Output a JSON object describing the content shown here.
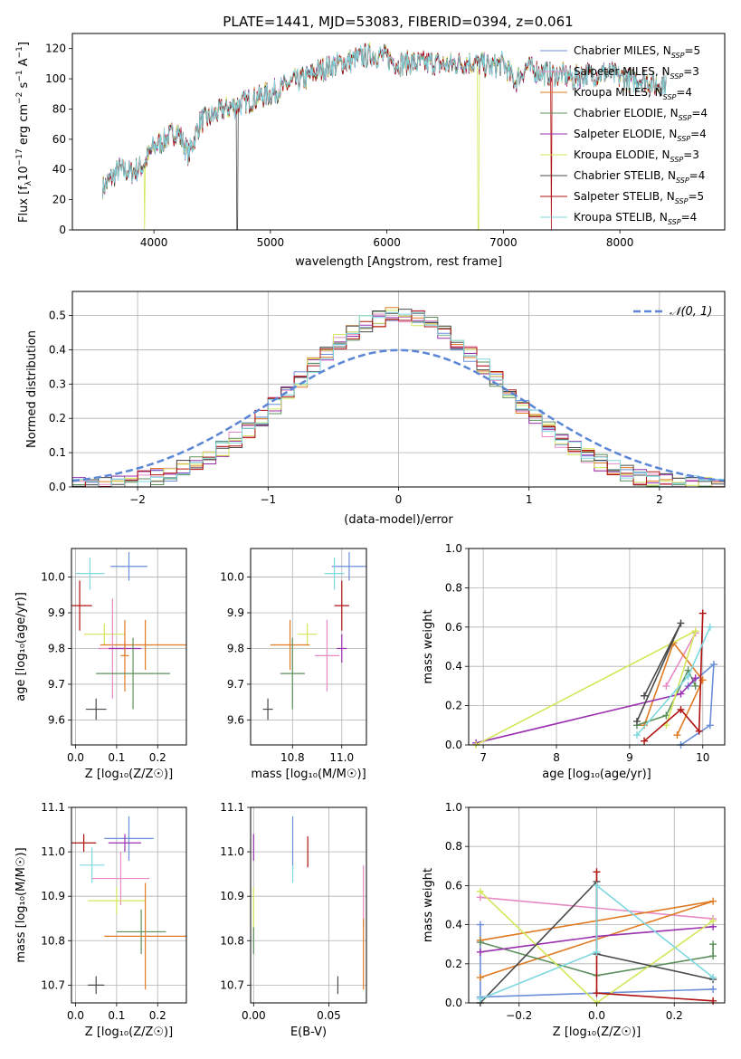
{
  "title": "PLATE=1441, MJD=53083, FIBERID=0394, z=0.061",
  "colors": {
    "chabrier_miles": "#6a8fd8",
    "salpeter_miles": "#e78ac3",
    "kroupa_miles": "#e07b24",
    "chabrier_elodie": "#5c8f5c",
    "salpeter_elodie": "#9b30b0",
    "kroupa_elodie": "#d4e65a",
    "chabrier_stelib": "#4a4a4a",
    "salpeter_stelib": "#b01010",
    "kroupa_stelib": "#7fd8e0",
    "normal_curve": "#5b86d6"
  },
  "panel_spectrum": {
    "xlabel": "wavelength [Angstrom, rest frame]",
    "ylabel_parts": {
      "main": "Flux [f",
      "sub": "λ",
      "mid": "10",
      "exp1": "−17",
      "mid2": " erg cm",
      "exp2": "−2",
      "mid3": " s",
      "exp3": "−1",
      "mid4": " A",
      "exp4": "−1",
      "end": "]"
    },
    "xticks": [
      "4000",
      "5000",
      "6000",
      "7000",
      "8000"
    ],
    "yticks": [
      "0",
      "20",
      "40",
      "60",
      "80",
      "100",
      "120"
    ],
    "legend": [
      {
        "name": "Chabrier MILES",
        "n": "5"
      },
      {
        "name": "Salpeter MILES",
        "n": "3"
      },
      {
        "name": "Kroupa MILES",
        "n": "4"
      },
      {
        "name": "Chabrier ELODIE",
        "n": "4"
      },
      {
        "name": "Salpeter ELODIE",
        "n": "4"
      },
      {
        "name": "Kroupa ELODIE",
        "n": "3"
      },
      {
        "name": "Chabrier STELIB",
        "n": "4"
      },
      {
        "name": "Salpeter STELIB",
        "n": "5"
      },
      {
        "name": "Kroupa STELIB",
        "n": "4"
      }
    ],
    "legend_n_prefix": "N",
    "legend_n_sub": "SSP",
    "legend_position": "upper-right"
  },
  "panel_residuals": {
    "xlabel": "(data-model)/error",
    "ylabel": "Normed distribution",
    "xticks": [
      "−2",
      "−1",
      "0",
      "1",
      "2"
    ],
    "yticks": [
      "0.0",
      "0.1",
      "0.2",
      "0.3",
      "0.4",
      "0.5"
    ],
    "legend_label": "𝒩(0, 1)"
  },
  "panel_age_Z": {
    "xlabel": "Z [log₁₀(Z/Z☉)]",
    "ylabel": "age  [log₁₀(age/yr)]",
    "xticks": [
      "0.0",
      "0.1",
      "0.2"
    ],
    "yticks": [
      "9.6",
      "9.7",
      "9.8",
      "9.9",
      "10.0"
    ]
  },
  "panel_age_mass": {
    "xlabel": "mass [log₁₀(M/M☉)]",
    "xticks": [
      "10.8",
      "11.0"
    ],
    "yticks": [
      "9.6",
      "9.7",
      "9.8",
      "9.9",
      "10.0"
    ]
  },
  "panel_weight_age": {
    "xlabel": "age  [log₁₀(age/yr)]",
    "ylabel": "mass weight",
    "xticks": [
      "7",
      "8",
      "9",
      "10"
    ],
    "yticks": [
      "0.0",
      "0.2",
      "0.4",
      "0.6",
      "0.8",
      "1.0"
    ]
  },
  "panel_mass_Z": {
    "xlabel": "Z [log₁₀(Z/Z☉)]",
    "ylabel": "mass [log₁₀(M/M☉)]",
    "xticks": [
      "0.0",
      "0.1",
      "0.2"
    ],
    "yticks": [
      "10.7",
      "10.8",
      "10.9",
      "11.0",
      "11.1"
    ]
  },
  "panel_mass_ebv": {
    "xlabel": "E(B-V)",
    "xticks": [
      "0.00",
      "0.05"
    ],
    "yticks": [
      "10.7",
      "10.8",
      "10.9",
      "11.0",
      "11.1"
    ]
  },
  "panel_weight_Z": {
    "xlabel": "Z [log₁₀(Z/Z☉)]",
    "ylabel": "mass weight",
    "xticks": [
      "−0.2",
      "0.0",
      "0.2"
    ],
    "yticks": [
      "0.0",
      "0.2",
      "0.4",
      "0.6",
      "0.8",
      "1.0"
    ]
  },
  "chart_data": [
    {
      "type": "line",
      "title": "PLATE=1441, MJD=53083, FIBERID=0394, z=0.061",
      "xlabel": "wavelength [Angstrom, rest frame]",
      "ylabel": "Flux [fλ10−17 erg cm−2 s−1 A−1]",
      "xlim": [
        3300,
        8900
      ],
      "ylim": [
        0,
        130
      ],
      "x": [
        3560,
        3700,
        3800,
        3900,
        4000,
        4100,
        4200,
        4300,
        4400,
        4500,
        4600,
        4700,
        4800,
        4900,
        5000,
        5100,
        5200,
        5300,
        5400,
        5500,
        5600,
        5700,
        5800,
        5900,
        6000,
        6100,
        6200,
        6300,
        6400,
        6500,
        6600,
        6700,
        6800,
        6900,
        7000,
        7100,
        7200,
        7300,
        7400,
        7500,
        7600,
        7700,
        7800,
        7900,
        8000,
        8100,
        8200,
        8300,
        8400
      ],
      "y": [
        28,
        40,
        38,
        42,
        55,
        60,
        66,
        50,
        72,
        75,
        80,
        82,
        85,
        88,
        90,
        94,
        98,
        100,
        105,
        108,
        110,
        112,
        115,
        116,
        114,
        110,
        111,
        110,
        111,
        109,
        110,
        111,
        110,
        108,
        110,
        98,
        108,
        105,
        103,
        103,
        100,
        103,
        103,
        104,
        101,
        99,
        100,
        96,
        98
      ],
      "series": [
        {
          "name": "Chabrier MILES, NSSP=5"
        },
        {
          "name": "Salpeter MILES, NSSP=3"
        },
        {
          "name": "Kroupa MILES, NSSP=4"
        },
        {
          "name": "Chabrier ELODIE, NSSP=4"
        },
        {
          "name": "Salpeter ELODIE, NSSP=4"
        },
        {
          "name": "Kroupa ELODIE, NSSP=3"
        },
        {
          "name": "Chabrier STELIB, NSSP=4"
        },
        {
          "name": "Salpeter STELIB, NSSP=5"
        },
        {
          "name": "Kroupa STELIB, NSSP=4"
        }
      ],
      "dips": [
        {
          "x": 3920,
          "series": "Kroupa ELODIE"
        },
        {
          "x": 4715,
          "series": "Chabrier STELIB"
        },
        {
          "x": 6785,
          "series": "Kroupa ELODIE"
        },
        {
          "x": 7410,
          "series": "Salpeter STELIB"
        }
      ],
      "legend": "upper-right",
      "grid": false
    },
    {
      "type": "area",
      "xlabel": "(data-model)/error",
      "ylabel": "Normed distribution",
      "xlim": [
        -2.5,
        2.5
      ],
      "ylim": [
        0,
        0.57
      ],
      "bin_width": 0.1,
      "reference_curve": {
        "name": "𝒩(0, 1)",
        "style": "dashed"
      },
      "histogram_peak_range": [
        0.44,
        0.54
      ],
      "grid": true,
      "legend": "upper-right"
    },
    {
      "type": "scatter",
      "xlabel": "Z [log₁₀(Z/Z☉)]",
      "ylabel": "age  [log₁₀(age/yr)]",
      "xlim": [
        -0.01,
        0.27
      ],
      "ylim": [
        9.53,
        10.08
      ],
      "points": [
        {
          "series": "Chabrier MILES",
          "x": 0.13,
          "y": 10.03,
          "xerr": 0.045,
          "yerr": 0.04
        },
        {
          "series": "Kroupa STELIB",
          "x": 0.035,
          "y": 10.01,
          "xerr": 0.035,
          "yerr": 0.045
        },
        {
          "series": "Salpeter STELIB",
          "x": 0.01,
          "y": 9.92,
          "xerr": 0.03,
          "yerr": 0.07
        },
        {
          "series": "Kroupa ELODIE",
          "x": 0.07,
          "y": 9.84,
          "xerr": 0.05,
          "yerr": 0.03
        },
        {
          "series": "Kroupa MILES",
          "x": 0.17,
          "y": 9.81,
          "xerr": 0.11,
          "yerr": 0.07
        },
        {
          "series": "Salpeter MILES",
          "x": 0.09,
          "y": 9.8,
          "xerr": 0.035,
          "yerr": 0.14
        },
        {
          "series": "Salpeter ELODIE",
          "x": 0.12,
          "y": 9.8,
          "xerr": 0.04,
          "yerr": 0.02
        },
        {
          "series": "Kroupa MILES",
          "x": 0.12,
          "y": 9.78,
          "xerr": 0.01,
          "yerr": 0.1
        },
        {
          "series": "Chabrier ELODIE",
          "x": 0.14,
          "y": 9.73,
          "xerr": 0.09,
          "yerr": 0.1
        },
        {
          "series": "Chabrier STELIB",
          "x": 0.05,
          "y": 9.63,
          "xerr": 0.025,
          "yerr": 0.03
        }
      ]
    },
    {
      "type": "scatter",
      "xlabel": "mass [log₁₀(M/M☉)]",
      "xlim": [
        10.63,
        11.1
      ],
      "ylim": [
        9.53,
        10.08
      ],
      "points": [
        {
          "series": "Chabrier MILES",
          "x": 11.03,
          "y": 10.03,
          "xerr": 0.07,
          "yerr": 0.04
        },
        {
          "series": "Kroupa STELIB",
          "x": 10.97,
          "y": 10.01,
          "xerr": 0.04,
          "yerr": 0.045
        },
        {
          "series": "Salpeter STELIB",
          "x": 11.0,
          "y": 9.92,
          "xerr": 0.03,
          "yerr": 0.07
        },
        {
          "series": "Kroupa ELODIE",
          "x": 10.86,
          "y": 9.84,
          "xerr": 0.04,
          "yerr": 0.03
        },
        {
          "series": "Kroupa MILES",
          "x": 10.79,
          "y": 9.81,
          "xerr": 0.08,
          "yerr": 0.07
        },
        {
          "series": "Salpeter ELODIE",
          "x": 11.0,
          "y": 9.8,
          "xerr": 0.02,
          "yerr": 0.04
        },
        {
          "series": "Salpeter MILES",
          "x": 10.94,
          "y": 9.78,
          "xerr": 0.05,
          "yerr": 0.1
        },
        {
          "series": "Chabrier ELODIE",
          "x": 10.8,
          "y": 9.73,
          "xerr": 0.05,
          "yerr": 0.1
        },
        {
          "series": "Chabrier STELIB",
          "x": 10.7,
          "y": 9.63,
          "xerr": 0.02,
          "yerr": 0.03
        }
      ]
    },
    {
      "type": "line",
      "xlabel": "age  [log₁₀(age/yr)]",
      "ylabel": "mass weight",
      "xlim": [
        6.8,
        10.3
      ],
      "ylim": [
        0,
        1
      ],
      "series": [
        {
          "series": "Chabrier MILES",
          "x": [
            9.7,
            10.1,
            10.15,
            9.8
          ],
          "y": [
            0.0,
            0.1,
            0.41,
            0.3
          ]
        },
        {
          "series": "Salpeter MILES",
          "x": [
            9.5,
            9.9
          ],
          "y": [
            0.3,
            0.57
          ]
        },
        {
          "series": "Kroupa MILES",
          "x": [
            9.2,
            9.6,
            10.0,
            9.65
          ],
          "y": [
            0.1,
            0.52,
            0.33,
            0.05
          ]
        },
        {
          "series": "Chabrier ELODIE",
          "x": [
            9.1,
            9.5,
            9.8,
            9.9
          ],
          "y": [
            0.1,
            0.15,
            0.38,
            0.3
          ]
        },
        {
          "series": "Salpeter ELODIE",
          "x": [
            6.9,
            9.7,
            9.9
          ],
          "y": [
            0.01,
            0.26,
            0.34
          ]
        },
        {
          "series": "Kroupa ELODIE",
          "x": [
            6.9,
            9.9,
            9.5
          ],
          "y": [
            0.0,
            0.58,
            0.1
          ]
        },
        {
          "series": "Chabrier STELIB",
          "x": [
            9.1,
            9.7,
            9.2
          ],
          "y": [
            0.12,
            0.62,
            0.25
          ]
        },
        {
          "series": "Salpeter STELIB",
          "x": [
            9.2,
            9.7,
            9.95,
            10.0
          ],
          "y": [
            0.02,
            0.18,
            0.07,
            0.67
          ]
        },
        {
          "series": "Kroupa STELIB",
          "x": [
            9.1,
            9.8,
            10.1
          ],
          "y": [
            0.05,
            0.35,
            0.6
          ]
        }
      ],
      "grid": true
    },
    {
      "type": "scatter",
      "xlabel": "Z [log₁₀(Z/Z☉)]",
      "ylabel": "mass [log₁₀(M/M☉)]",
      "xlim": [
        -0.01,
        0.27
      ],
      "ylim": [
        10.66,
        11.1
      ],
      "points": [
        {
          "series": "Chabrier MILES",
          "x": 0.13,
          "y": 11.03,
          "xerr": 0.06,
          "yerr": 0.05
        },
        {
          "series": "Salpeter STELIB",
          "x": 0.02,
          "y": 11.02,
          "xerr": 0.03,
          "yerr": 0.02
        },
        {
          "series": "Salpeter ELODIE",
          "x": 0.12,
          "y": 11.02,
          "xerr": 0.04,
          "yerr": 0.02
        },
        {
          "series": "Kroupa STELIB",
          "x": 0.04,
          "y": 10.97,
          "xerr": 0.03,
          "yerr": 0.04
        },
        {
          "series": "Salpeter MILES",
          "x": 0.11,
          "y": 10.94,
          "xerr": 0.07,
          "yerr": 0.06
        },
        {
          "series": "Kroupa ELODIE",
          "x": 0.1,
          "y": 10.89,
          "xerr": 0.07,
          "yerr": 0.03
        },
        {
          "series": "Chabrier ELODIE",
          "x": 0.16,
          "y": 10.82,
          "xerr": 0.06,
          "yerr": 0.05
        },
        {
          "series": "Kroupa MILES",
          "x": 0.17,
          "y": 10.81,
          "xerr": 0.1,
          "yerr": 0.12
        },
        {
          "series": "Chabrier STELIB",
          "x": 0.05,
          "y": 10.7,
          "xerr": 0.02,
          "yerr": 0.02
        }
      ]
    },
    {
      "type": "scatter",
      "xlabel": "E(B-V)",
      "xlim": [
        -0.002,
        0.075
      ],
      "ylim": [
        10.66,
        11.1
      ],
      "points": [
        {
          "series": "Salpeter ELODIE",
          "x": 0.0,
          "y": 11.01,
          "yerr": 0.03
        },
        {
          "series": "Chabrier MILES",
          "x": 0.026,
          "y": 11.02,
          "yerr": 0.06
        },
        {
          "series": "Salpeter STELIB",
          "x": 0.036,
          "y": 11.0,
          "yerr": 0.035
        },
        {
          "series": "Kroupa STELIB",
          "x": 0.026,
          "y": 10.95,
          "yerr": 0.02
        },
        {
          "series": "Salpeter MILES",
          "x": 0.073,
          "y": 10.9,
          "yerr": 0.07
        },
        {
          "series": "Kroupa ELODIE",
          "x": 0.0,
          "y": 10.87,
          "yerr": 0.05
        },
        {
          "series": "Chabrier ELODIE",
          "x": 0.0,
          "y": 10.8,
          "yerr": 0.03
        },
        {
          "series": "Kroupa MILES",
          "x": 0.073,
          "y": 10.77,
          "yerr": 0.08
        },
        {
          "series": "Chabrier STELIB",
          "x": 0.056,
          "y": 10.7,
          "yerr": 0.02
        }
      ]
    },
    {
      "type": "line",
      "xlabel": "Z [log₁₀(Z/Z☉)]",
      "ylabel": "mass weight",
      "xlim": [
        -0.33,
        0.33
      ],
      "ylim": [
        0,
        1
      ],
      "series": [
        {
          "series": "Chabrier MILES",
          "x": [
            -0.3,
            -0.3,
            0.0,
            0.3
          ],
          "y": [
            0.4,
            0.03,
            0.05,
            0.07
          ]
        },
        {
          "series": "Salpeter MILES",
          "x": [
            -0.3,
            0.3
          ],
          "y": [
            0.54,
            0.43
          ]
        },
        {
          "series": "Kroupa MILES",
          "x": [
            -0.3,
            0.3,
            -0.3
          ],
          "y": [
            0.32,
            0.52,
            0.13
          ]
        },
        {
          "series": "Chabrier ELODIE",
          "x": [
            -0.3,
            0.0,
            0.3,
            0.3
          ],
          "y": [
            0.31,
            0.14,
            0.24,
            0.3
          ]
        },
        {
          "series": "Salpeter ELODIE",
          "x": [
            -0.3,
            0.0,
            0.3
          ],
          "y": [
            0.26,
            0.34,
            0.39
          ]
        },
        {
          "series": "Kroupa ELODIE",
          "x": [
            -0.3,
            0.0,
            0.3
          ],
          "y": [
            0.57,
            0.0,
            0.42
          ]
        },
        {
          "series": "Chabrier STELIB",
          "x": [
            -0.3,
            0.0,
            0.0,
            0.3
          ],
          "y": [
            0.0,
            0.62,
            0.25,
            0.12
          ]
        },
        {
          "series": "Salpeter STELIB",
          "x": [
            0.0,
            0.0,
            0.3
          ],
          "y": [
            0.67,
            0.05,
            0.01
          ]
        },
        {
          "series": "Kroupa STELIB",
          "x": [
            -0.3,
            0.0,
            0.0,
            0.3
          ],
          "y": [
            0.02,
            0.26,
            0.6,
            0.13
          ]
        }
      ],
      "grid": true
    }
  ]
}
